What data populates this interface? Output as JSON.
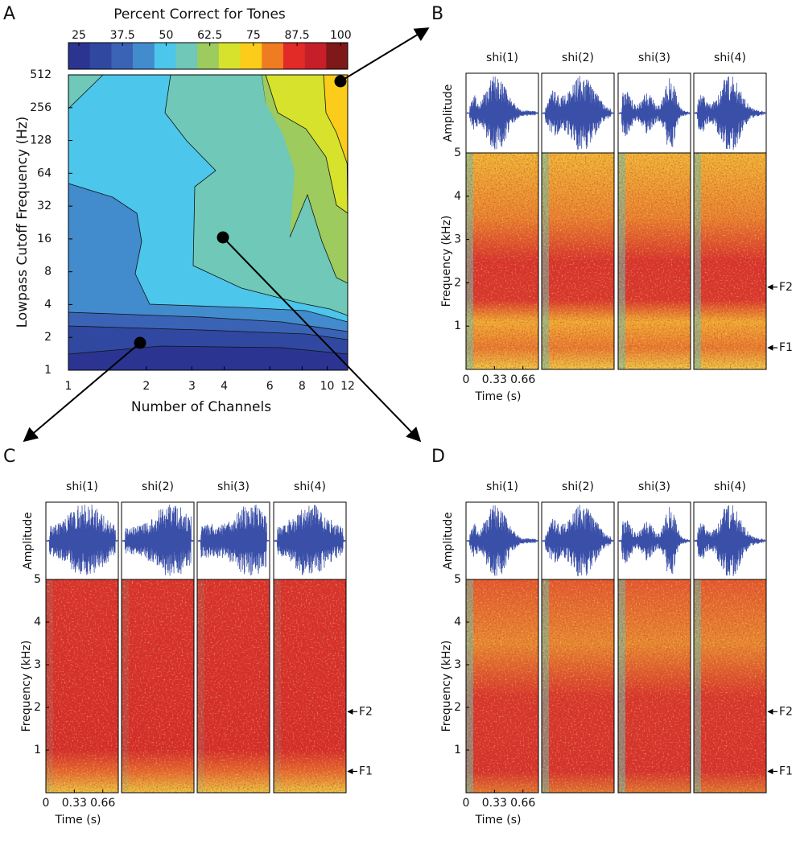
{
  "panel_a": {
    "label": "A",
    "colorbar": {
      "title": "Percent Correct for Tones",
      "lim": [
        22,
        102
      ],
      "ticks": [
        25,
        37.5,
        50,
        62.5,
        75,
        87.5,
        100
      ],
      "colors": [
        "#2b3591",
        "#3048a0",
        "#3a63b6",
        "#428bcc",
        "#4cc6ea",
        "#6fc8b8",
        "#9dcb5e",
        "#d7e22c",
        "#fbcc1a",
        "#f07c22",
        "#e22a26",
        "#c71f2a",
        "#7f1818"
      ]
    },
    "contour": {
      "type": "contour",
      "xlabel": "Number of Channels",
      "ylabel": "Lowpass Cutoff Frequency (Hz)",
      "xscale": "log",
      "yscale": "log",
      "xlim": [
        1,
        12
      ],
      "ylim": [
        1,
        512
      ],
      "xticks": [
        1,
        2,
        3,
        4,
        6,
        8,
        10,
        12
      ],
      "yticks": [
        1,
        2,
        4,
        8,
        16,
        32,
        64,
        128,
        256,
        512
      ]
    }
  },
  "panel_b": {
    "label": "B",
    "titles": [
      "shi(1)",
      "shi(2)",
      "shi(3)",
      "shi(4)"
    ],
    "amplitude_label": "Amplitude",
    "ylabel": "Frequency (kHz)",
    "ylim": [
      0,
      5
    ],
    "yticks": [
      1,
      2,
      3,
      4,
      5
    ],
    "xlabel": "Time (s)",
    "xlim": [
      0,
      0.84
    ],
    "xticks": [
      0,
      0.33,
      0.66
    ],
    "formants": [
      {
        "label": "F2",
        "value": 1.9
      },
      {
        "label": "F1",
        "value": 0.5
      }
    ]
  },
  "panel_c": {
    "label": "C",
    "titles": [
      "shi(1)",
      "shi(2)",
      "shi(3)",
      "shi(4)"
    ],
    "amplitude_label": "Amplitude",
    "ylabel": "Frequency (kHz)",
    "ylim": [
      0,
      5
    ],
    "yticks": [
      1,
      2,
      3,
      4,
      5
    ],
    "xlabel": "Time (s)",
    "xlim": [
      0,
      0.84
    ],
    "xticks": [
      0,
      0.33,
      0.66
    ],
    "formants": [
      {
        "label": "F2",
        "value": 1.9
      },
      {
        "label": "F1",
        "value": 0.5
      }
    ]
  },
  "panel_d": {
    "label": "D",
    "titles": [
      "shi(1)",
      "shi(2)",
      "shi(3)",
      "shi(4)"
    ],
    "amplitude_label": "Amplitude",
    "ylabel": "Frequency (kHz)",
    "ylim": [
      0,
      5
    ],
    "yticks": [
      1,
      2,
      3,
      4,
      5
    ],
    "xlabel": "Time (s)",
    "xlim": [
      0,
      0.84
    ],
    "xticks": [
      0,
      0.33,
      0.66
    ],
    "formants": [
      {
        "label": "F2",
        "value": 1.9
      },
      {
        "label": "F1",
        "value": 0.5
      }
    ]
  }
}
